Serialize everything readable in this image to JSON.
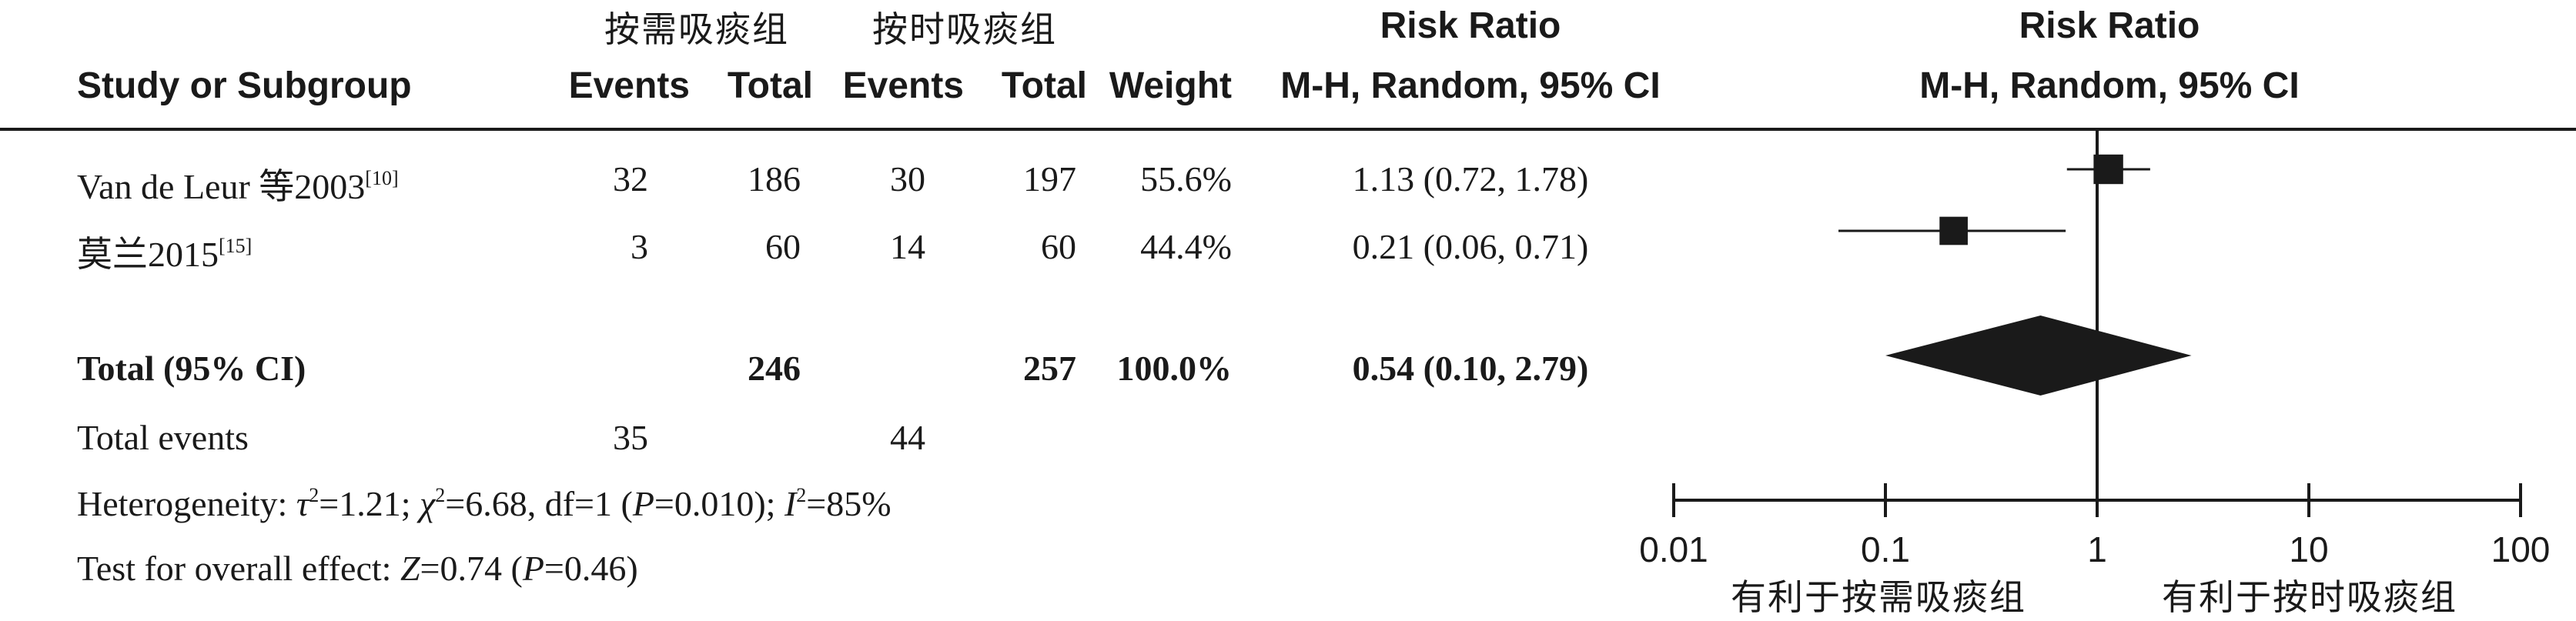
{
  "header": {
    "group_exp": "按需吸痰组",
    "group_ctl": "按时吸痰组",
    "risk_ratio": "Risk Ratio",
    "study_col": "Study or Subgroup",
    "events": "Events",
    "total": "Total",
    "weight": "Weight",
    "method": "M-H, Random, 95% CI",
    "plot_title": "Risk Ratio",
    "plot_method": "M-H, Random, 95% CI"
  },
  "studies": [
    {
      "name": "Van de Leur 等2003",
      "ref": "[10]",
      "e_events": "32",
      "e_total": "186",
      "c_events": "30",
      "c_total": "197",
      "weight": "55.6%",
      "ci_text": "1.13 (0.72, 1.78)"
    },
    {
      "name": "莫兰2015",
      "ref": "[15]",
      "e_events": "3",
      "e_total": "60",
      "c_events": "14",
      "c_total": "60",
      "weight": "44.4%",
      "ci_text": "0.21 (0.06, 0.71)"
    }
  ],
  "total": {
    "label": "Total (95% CI)",
    "e_total": "246",
    "c_total": "257",
    "weight": "100.0%",
    "ci_text": "0.54 (0.10, 2.79)"
  },
  "total_events": {
    "label": "Total events",
    "e_events": "35",
    "c_events": "44"
  },
  "heterogeneity": {
    "prefix": "Heterogeneity: ",
    "tau_sym": "τ",
    "tau_val": "=1.21; ",
    "chi_sym": "χ",
    "chi_val": "=6.68, df=1 (",
    "p_sym": "P",
    "p_val": "=0.010); ",
    "i_sym": "I",
    "i_val": "=85%",
    "sq": "2"
  },
  "overall": {
    "prefix": "Test for overall effect: ",
    "z_sym": "Z",
    "z_val": "=0.74 (",
    "p_sym": "P",
    "p_val": "=0.46)"
  },
  "axis": {
    "favours_left": "有利于按需吸痰组",
    "favours_right": "有利于按时吸痰组"
  },
  "chart_data": {
    "type": "forest",
    "x_scale": "log",
    "xlim": [
      0.01,
      100
    ],
    "x_ticks": [
      0.01,
      0.1,
      1,
      10,
      100
    ],
    "x_tick_labels": [
      "0.01",
      "0.1",
      "1",
      "10",
      "100"
    ],
    "reference_line": 1,
    "studies": [
      {
        "name": "Van de Leur 等2003",
        "rr": 1.13,
        "ci_low": 0.72,
        "ci_high": 1.78,
        "weight": 55.6
      },
      {
        "name": "莫兰2015",
        "rr": 0.21,
        "ci_low": 0.06,
        "ci_high": 0.71,
        "weight": 44.4
      }
    ],
    "pooled": {
      "rr": 0.54,
      "ci_low": 0.1,
      "ci_high": 2.79,
      "weight": 100.0
    }
  }
}
